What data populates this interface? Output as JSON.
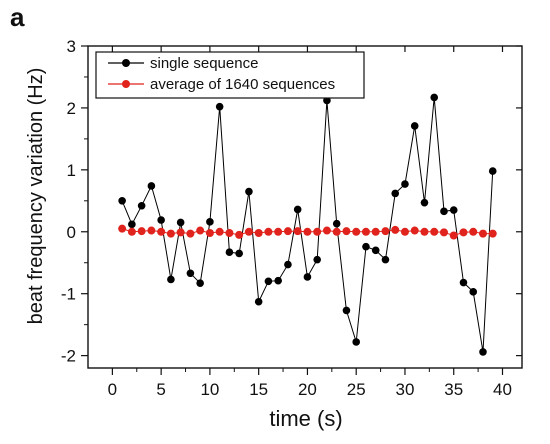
{
  "panel_label": "a",
  "chart_data": {
    "type": "line",
    "xlabel": "time (s)",
    "ylabel": "beat frequency variation (Hz)",
    "xlim": [
      -2.5,
      42
    ],
    "ylim": [
      -2.2,
      3
    ],
    "xticks": [
      0,
      5,
      10,
      15,
      20,
      25,
      30,
      35,
      40
    ],
    "yticks": [
      -2,
      -1,
      0,
      1,
      2,
      3
    ],
    "grid": false,
    "legend_position": "top-left",
    "series": [
      {
        "name": "single sequence",
        "color": "#000000",
        "x": [
          1,
          2,
          3,
          4,
          5,
          6,
          7,
          8,
          9,
          10,
          11,
          12,
          13,
          14,
          15,
          16,
          17,
          18,
          19,
          20,
          21,
          22,
          23,
          24,
          25,
          26,
          27,
          28,
          29,
          30,
          31,
          32,
          33,
          34,
          35,
          36,
          37,
          38,
          39
        ],
        "values": [
          0.5,
          0.12,
          0.42,
          0.74,
          0.19,
          -0.77,
          0.15,
          -0.67,
          -0.83,
          0.16,
          2.02,
          -0.33,
          -0.35,
          0.65,
          -1.13,
          -0.8,
          -0.79,
          -0.53,
          0.36,
          -0.73,
          -0.45,
          2.12,
          0.13,
          -1.27,
          -1.78,
          -0.24,
          -0.3,
          -0.45,
          0.62,
          0.77,
          1.71,
          0.47,
          2.17,
          0.33,
          0.35,
          -0.82,
          -0.97,
          -1.94,
          0.98
        ]
      },
      {
        "name": "average of 1640 sequences",
        "color": "#e0231c",
        "x": [
          1,
          2,
          3,
          4,
          5,
          6,
          7,
          8,
          9,
          10,
          11,
          12,
          13,
          14,
          15,
          16,
          17,
          18,
          19,
          20,
          21,
          22,
          23,
          24,
          25,
          26,
          27,
          28,
          29,
          30,
          31,
          32,
          33,
          34,
          35,
          36,
          37,
          38,
          39
        ],
        "values": [
          0.05,
          0.0,
          0.01,
          0.02,
          0.0,
          -0.03,
          -0.01,
          -0.03,
          0.02,
          -0.02,
          0.0,
          -0.02,
          -0.05,
          0.0,
          -0.02,
          0.0,
          0.0,
          0.01,
          0.01,
          0.0,
          0.0,
          0.02,
          0.0,
          0.01,
          0.0,
          0.0,
          0.0,
          0.01,
          0.03,
          0.0,
          0.02,
          0.0,
          0.0,
          -0.01,
          -0.06,
          -0.01,
          0.0,
          -0.03,
          -0.03
        ]
      }
    ]
  }
}
